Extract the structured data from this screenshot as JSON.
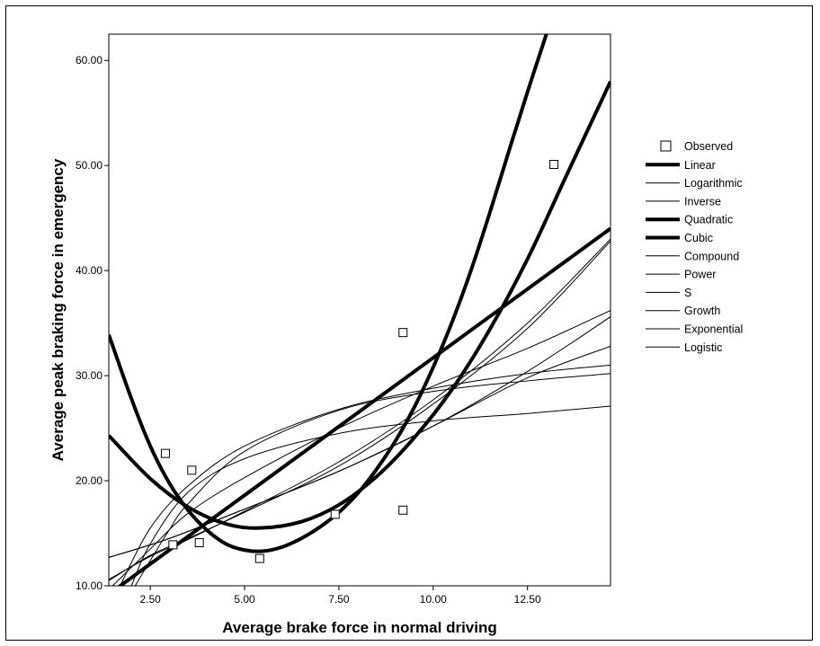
{
  "chart_data": {
    "type": "scatter",
    "xlabel": "Average brake force in normal driving",
    "ylabel": "Average peak braking force in emergency",
    "xlim": [
      1.4,
      14.7
    ],
    "ylim": [
      10,
      62.5
    ],
    "x_ticks": [
      "2.50",
      "5.00",
      "7.50",
      "10.00",
      "12.50"
    ],
    "y_ticks": [
      "10.00",
      "20.00",
      "30.00",
      "40.00",
      "50.00",
      "60.00"
    ],
    "legend_position": "right",
    "observed": {
      "name": "Observed",
      "points": [
        {
          "x": 2.9,
          "y": 22.6
        },
        {
          "x": 3.1,
          "y": 13.9
        },
        {
          "x": 3.6,
          "y": 21.0
        },
        {
          "x": 3.8,
          "y": 14.1
        },
        {
          "x": 5.4,
          "y": 12.6
        },
        {
          "x": 7.4,
          "y": 16.8
        },
        {
          "x": 9.2,
          "y": 34.1
        },
        {
          "x": 9.2,
          "y": 17.2
        },
        {
          "x": 13.2,
          "y": 50.1
        }
      ]
    },
    "series": [
      {
        "name": "Linear",
        "points": [
          [
            1.4,
            9.2
          ],
          [
            14.7,
            44.0
          ]
        ],
        "weight": "bold"
      },
      {
        "name": "Logarithmic",
        "points": [
          [
            1.7,
            10.0
          ],
          [
            2.5,
            15.5
          ],
          [
            3.5,
            19.5
          ],
          [
            5.0,
            23.3
          ],
          [
            7.5,
            26.8
          ],
          [
            10.0,
            28.8
          ],
          [
            12.5,
            30.2
          ],
          [
            14.7,
            31.0
          ]
        ],
        "weight": "thin"
      },
      {
        "name": "Inverse",
        "points": [
          [
            2.0,
            10.0
          ],
          [
            2.5,
            14.0
          ],
          [
            3.5,
            18.9
          ],
          [
            5.0,
            22.1
          ],
          [
            7.5,
            24.5
          ],
          [
            10.0,
            25.7
          ],
          [
            12.5,
            26.4
          ],
          [
            14.7,
            27.1
          ]
        ],
        "weight": "thin"
      },
      {
        "name": "Quadratic",
        "points": [
          [
            1.4,
            24.3
          ],
          [
            2.5,
            20.2
          ],
          [
            3.5,
            17.5
          ],
          [
            4.5,
            15.9
          ],
          [
            5.4,
            15.5
          ],
          [
            6.5,
            16.1
          ],
          [
            7.5,
            17.7
          ],
          [
            8.5,
            20.4
          ],
          [
            9.5,
            24.1
          ],
          [
            10.5,
            28.7
          ],
          [
            11.5,
            34.4
          ],
          [
            12.5,
            41.1
          ],
          [
            13.5,
            48.8
          ],
          [
            14.7,
            58.0
          ]
        ],
        "weight": "bold"
      },
      {
        "name": "Cubic",
        "points": [
          [
            1.4,
            33.9
          ],
          [
            2.0,
            27.8
          ],
          [
            2.5,
            23.3
          ],
          [
            3.0,
            19.8
          ],
          [
            3.5,
            17.2
          ],
          [
            4.0,
            15.3
          ],
          [
            4.5,
            14.0
          ],
          [
            5.0,
            13.4
          ],
          [
            5.5,
            13.3
          ],
          [
            6.0,
            13.7
          ],
          [
            6.5,
            14.5
          ],
          [
            7.0,
            15.6
          ],
          [
            7.5,
            17.0
          ],
          [
            8.0,
            18.8
          ],
          [
            8.5,
            21.1
          ],
          [
            9.0,
            23.8
          ],
          [
            9.5,
            27.0
          ],
          [
            10.0,
            30.8
          ],
          [
            10.5,
            35.1
          ],
          [
            11.0,
            40.0
          ],
          [
            11.5,
            45.5
          ],
          [
            12.0,
            51.3
          ],
          [
            12.5,
            57.0
          ],
          [
            13.0,
            62.5
          ]
        ],
        "weight": "bold"
      },
      {
        "name": "Compound",
        "points": [
          [
            1.4,
            12.7
          ],
          [
            3.0,
            14.5
          ],
          [
            5.0,
            17.3
          ],
          [
            7.5,
            20.9
          ],
          [
            10.0,
            25.2
          ],
          [
            12.5,
            29.8
          ],
          [
            14.7,
            32.8
          ]
        ],
        "weight": "thin"
      },
      {
        "name": "Power",
        "points": [
          [
            1.5,
            10.0
          ],
          [
            2.5,
            13.5
          ],
          [
            3.5,
            16.9
          ],
          [
            5.0,
            20.3
          ],
          [
            7.5,
            25.0
          ],
          [
            10.0,
            29.0
          ],
          [
            12.5,
            32.6
          ],
          [
            14.7,
            36.2
          ]
        ],
        "weight": "thin"
      },
      {
        "name": "S",
        "points": [
          [
            2.1,
            10.0
          ],
          [
            2.5,
            12.4
          ],
          [
            3.0,
            15.3
          ],
          [
            3.5,
            17.8
          ],
          [
            5.0,
            22.8
          ],
          [
            7.5,
            26.7
          ],
          [
            10.0,
            28.5
          ],
          [
            12.5,
            29.5
          ],
          [
            14.7,
            30.2
          ]
        ],
        "weight": "thin"
      },
      {
        "name": "Growth",
        "points": [
          [
            1.4,
            12.7
          ],
          [
            3.0,
            14.5
          ],
          [
            5.0,
            17.3
          ],
          [
            7.5,
            20.9
          ],
          [
            10.0,
            25.2
          ],
          [
            12.5,
            30.4
          ],
          [
            14.7,
            35.6
          ]
        ],
        "weight": "thin"
      },
      {
        "name": "Exponential",
        "points": [
          [
            1.4,
            10.5
          ],
          [
            2.5,
            12.9
          ],
          [
            3.5,
            14.5
          ],
          [
            5.0,
            17.0
          ],
          [
            7.5,
            21.4
          ],
          [
            10.0,
            27.3
          ],
          [
            12.5,
            34.5
          ],
          [
            14.7,
            42.8
          ]
        ],
        "weight": "thin"
      },
      {
        "name": "Logistic",
        "points": [
          [
            1.4,
            10.6
          ],
          [
            2.5,
            12.8
          ],
          [
            3.5,
            14.4
          ],
          [
            5.0,
            17.1
          ],
          [
            7.5,
            21.8
          ],
          [
            10.0,
            27.7
          ],
          [
            12.5,
            35.0
          ],
          [
            14.7,
            43.0
          ]
        ],
        "weight": "thin"
      }
    ]
  }
}
